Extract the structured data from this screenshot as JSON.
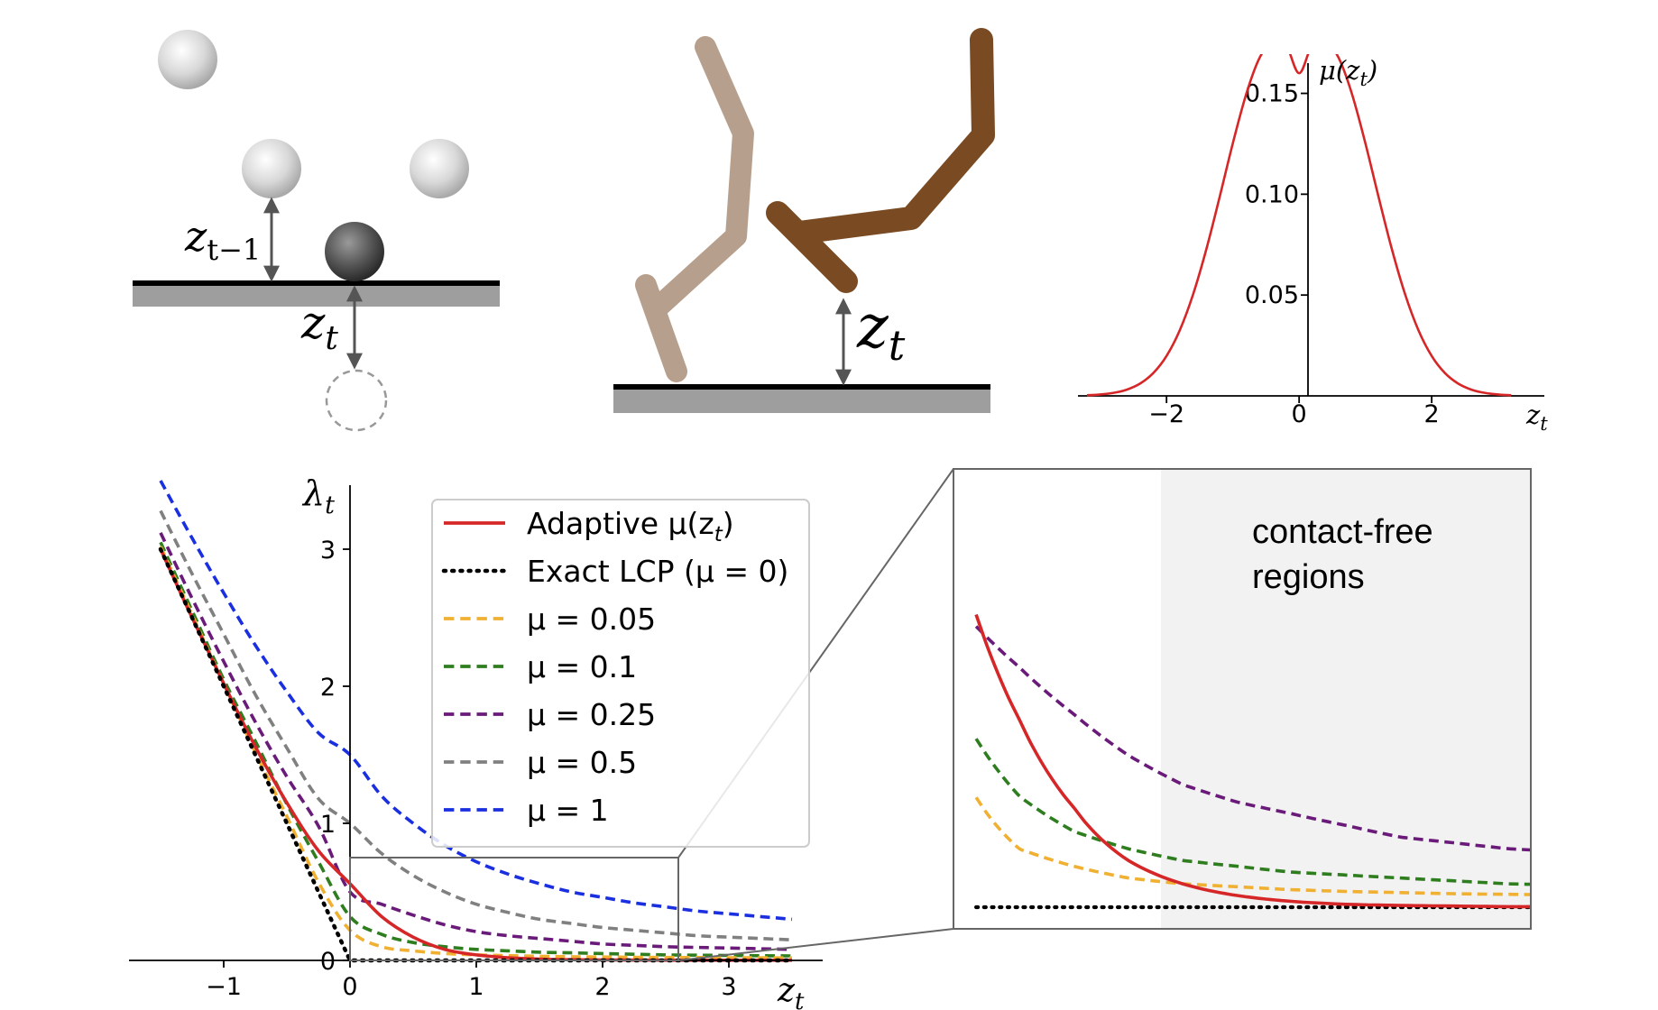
{
  "panels": {
    "ball": {
      "label_prev": "z",
      "label_prev_sub": "t−1",
      "label_curr": "z",
      "label_curr_sub": "t"
    },
    "robot": {
      "label": "z",
      "label_sub": "t"
    }
  },
  "colors": {
    "adaptive": "#d62728",
    "exact": "#000000",
    "mu005": "#f0b032",
    "mu01": "#2e7d1e",
    "mu025": "#6a1b7a",
    "mu05": "#808080",
    "mu1": "#1a2fe0",
    "shade": "#f2f2f2",
    "ground_top": "#000000",
    "ground_base": "#9e9e9e",
    "robot_dark": "#7a4a22",
    "robot_light": "#b79f8d"
  },
  "chart_data": [
    {
      "id": "mu-curve",
      "type": "line",
      "title": "",
      "ylabel": "μ(z",
      "ylabel_sub": "t",
      "ylabel_close": ")",
      "xlabel": "z",
      "xlabel_sub": "t",
      "xlim": [
        -3.2,
        3.4
      ],
      "ylim": [
        0,
        0.165
      ],
      "xticks": [
        {
          "v": -2,
          "label": "−2"
        },
        {
          "v": 0,
          "label": "0"
        },
        {
          "v": 2,
          "label": "2"
        }
      ],
      "yticks": [
        {
          "v": 0.05,
          "label": "0.05"
        },
        {
          "v": 0.1,
          "label": "0.10"
        },
        {
          "v": 0.15,
          "label": "0.15"
        }
      ],
      "series": [
        {
          "name": "μ(z_t)",
          "color_key": "adaptive",
          "style": "solid",
          "x": [
            -3.2,
            -3.0,
            -2.8,
            -2.6,
            -2.4,
            -2.2,
            -2.0,
            -1.8,
            -1.6,
            -1.4,
            -1.2,
            -1.0,
            -0.8,
            -0.6,
            -0.4,
            -0.2,
            0.0,
            0.2,
            0.4,
            0.6,
            0.8,
            1.0,
            1.2,
            1.4,
            1.6,
            1.8,
            2.0,
            2.2,
            2.4,
            2.6,
            2.8,
            3.0,
            3.2
          ],
          "y": [
            0.0003,
            0.0007,
            0.0015,
            0.0031,
            0.0061,
            0.0113,
            0.0198,
            0.0326,
            0.0503,
            0.0727,
            0.0985,
            0.1253,
            0.1495,
            0.1674,
            0.176,
            0.1742,
            0.16,
            0.1742,
            0.176,
            0.1674,
            0.1495,
            0.1253,
            0.0985,
            0.0727,
            0.0503,
            0.0326,
            0.0198,
            0.0113,
            0.0061,
            0.0031,
            0.0015,
            0.0007,
            0.0003
          ]
        }
      ]
    },
    {
      "id": "lambda-main",
      "type": "line",
      "title": "",
      "ylabel": "λ",
      "ylabel_sub": "t",
      "xlabel": "z",
      "xlabel_sub": "t",
      "xlim": [
        -1.75,
        3.75
      ],
      "ylim": [
        -0.1,
        3.5
      ],
      "xticks": [
        {
          "v": -1,
          "label": "−1"
        },
        {
          "v": 0,
          "label": "0"
        },
        {
          "v": 1,
          "label": "1"
        },
        {
          "v": 2,
          "label": "2"
        },
        {
          "v": 3,
          "label": "3"
        }
      ],
      "yticks": [
        {
          "v": 0,
          "label": "0"
        },
        {
          "v": 1,
          "label": "1"
        },
        {
          "v": 2,
          "label": "2"
        },
        {
          "v": 3,
          "label": "3"
        }
      ],
      "zoom_box": {
        "x": [
          0,
          2.6
        ],
        "y": [
          0,
          0.75
        ]
      },
      "x": [
        -1.5,
        -1.25,
        -1.0,
        -0.75,
        -0.5,
        -0.25,
        0.0,
        0.25,
        0.5,
        0.75,
        1.0,
        1.25,
        1.5,
        1.75,
        2.0,
        2.25,
        2.5,
        2.75,
        3.0,
        3.25,
        3.5
      ],
      "series": [
        {
          "name": "Adaptive μ(z_t)",
          "color_key": "adaptive",
          "style": "solid",
          "y": [
            3.0,
            2.5,
            2.02,
            1.56,
            1.15,
            0.8,
            0.56,
            0.32,
            0.17,
            0.08,
            0.04,
            0.02,
            0.01,
            0.005,
            0.003,
            0.002,
            0.001,
            0.001,
            0.001,
            0.001,
            0.001
          ]
        },
        {
          "name": "Exact LCP (μ = 0)",
          "color_key": "exact",
          "style": "dotted",
          "y": [
            3.0,
            2.5,
            2.0,
            1.5,
            1.0,
            0.5,
            0.0,
            0.0,
            0.0,
            0.0,
            0.0,
            0.0,
            0.0,
            0.0,
            0.0,
            0.0,
            0.0,
            0.0,
            0.0,
            0.0,
            0.0
          ]
        },
        {
          "name": "μ = 0.05",
          "color_key": "mu005",
          "style": "dashed",
          "y": [
            3.02,
            2.52,
            2.02,
            1.52,
            1.05,
            0.57,
            0.22,
            0.1,
            0.07,
            0.05,
            0.04,
            0.035,
            0.03,
            0.027,
            0.025,
            0.023,
            0.022,
            0.021,
            0.02,
            0.019,
            0.018
          ]
        },
        {
          "name": "μ = 0.1",
          "color_key": "mu01",
          "style": "dashed",
          "y": [
            3.05,
            2.55,
            2.05,
            1.6,
            1.14,
            0.72,
            0.32,
            0.19,
            0.13,
            0.1,
            0.08,
            0.07,
            0.06,
            0.055,
            0.05,
            0.045,
            0.04,
            0.038,
            0.036,
            0.034,
            0.033
          ]
        },
        {
          "name": "μ = 0.25",
          "color_key": "mu025",
          "style": "dashed",
          "y": [
            3.12,
            2.64,
            2.18,
            1.74,
            1.34,
            0.98,
            0.5,
            0.41,
            0.33,
            0.26,
            0.21,
            0.18,
            0.16,
            0.14,
            0.12,
            0.11,
            0.1,
            0.095,
            0.09,
            0.085,
            0.08
          ]
        },
        {
          "name": "μ = 0.5",
          "color_key": "mu05",
          "style": "dashed",
          "y": [
            3.28,
            2.82,
            2.38,
            1.94,
            1.55,
            1.18,
            1.0,
            0.78,
            0.62,
            0.5,
            0.41,
            0.35,
            0.3,
            0.27,
            0.24,
            0.22,
            0.2,
            0.18,
            0.17,
            0.16,
            0.15
          ]
        },
        {
          "name": "μ = 1",
          "color_key": "mu1",
          "style": "dashed",
          "y": [
            3.5,
            3.08,
            2.68,
            2.3,
            1.96,
            1.66,
            1.5,
            1.2,
            1.0,
            0.84,
            0.72,
            0.63,
            0.56,
            0.5,
            0.46,
            0.42,
            0.39,
            0.36,
            0.34,
            0.32,
            0.3
          ]
        }
      ]
    },
    {
      "id": "lambda-zoom",
      "type": "line",
      "title": "",
      "xlim": [
        0,
        2.6
      ],
      "ylim": [
        0,
        0.75
      ],
      "shaded_region": {
        "x": [
          0.9,
          2.6
        ],
        "label_line1": "contact-free",
        "label_line2": "regions"
      },
      "series_keys": [
        "adaptive",
        "exact",
        "mu005",
        "mu01",
        "mu025"
      ]
    }
  ],
  "legend": {
    "entries": [
      {
        "label": "Adaptive μ(z",
        "sub": "t",
        "close": ")",
        "color_key": "adaptive",
        "style": "solid"
      },
      {
        "label": "Exact LCP (μ = 0)",
        "sub": "",
        "close": "",
        "color_key": "exact",
        "style": "dotted"
      },
      {
        "label": "μ = 0.05",
        "sub": "",
        "close": "",
        "color_key": "mu005",
        "style": "dashed"
      },
      {
        "label": "μ = 0.1",
        "sub": "",
        "close": "",
        "color_key": "mu01",
        "style": "dashed"
      },
      {
        "label": "μ = 0.25",
        "sub": "",
        "close": "",
        "color_key": "mu025",
        "style": "dashed"
      },
      {
        "label": "μ = 0.5",
        "sub": "",
        "close": "",
        "color_key": "mu05",
        "style": "dashed"
      },
      {
        "label": "μ = 1",
        "sub": "",
        "close": "",
        "color_key": "mu1",
        "style": "dashed"
      }
    ]
  }
}
